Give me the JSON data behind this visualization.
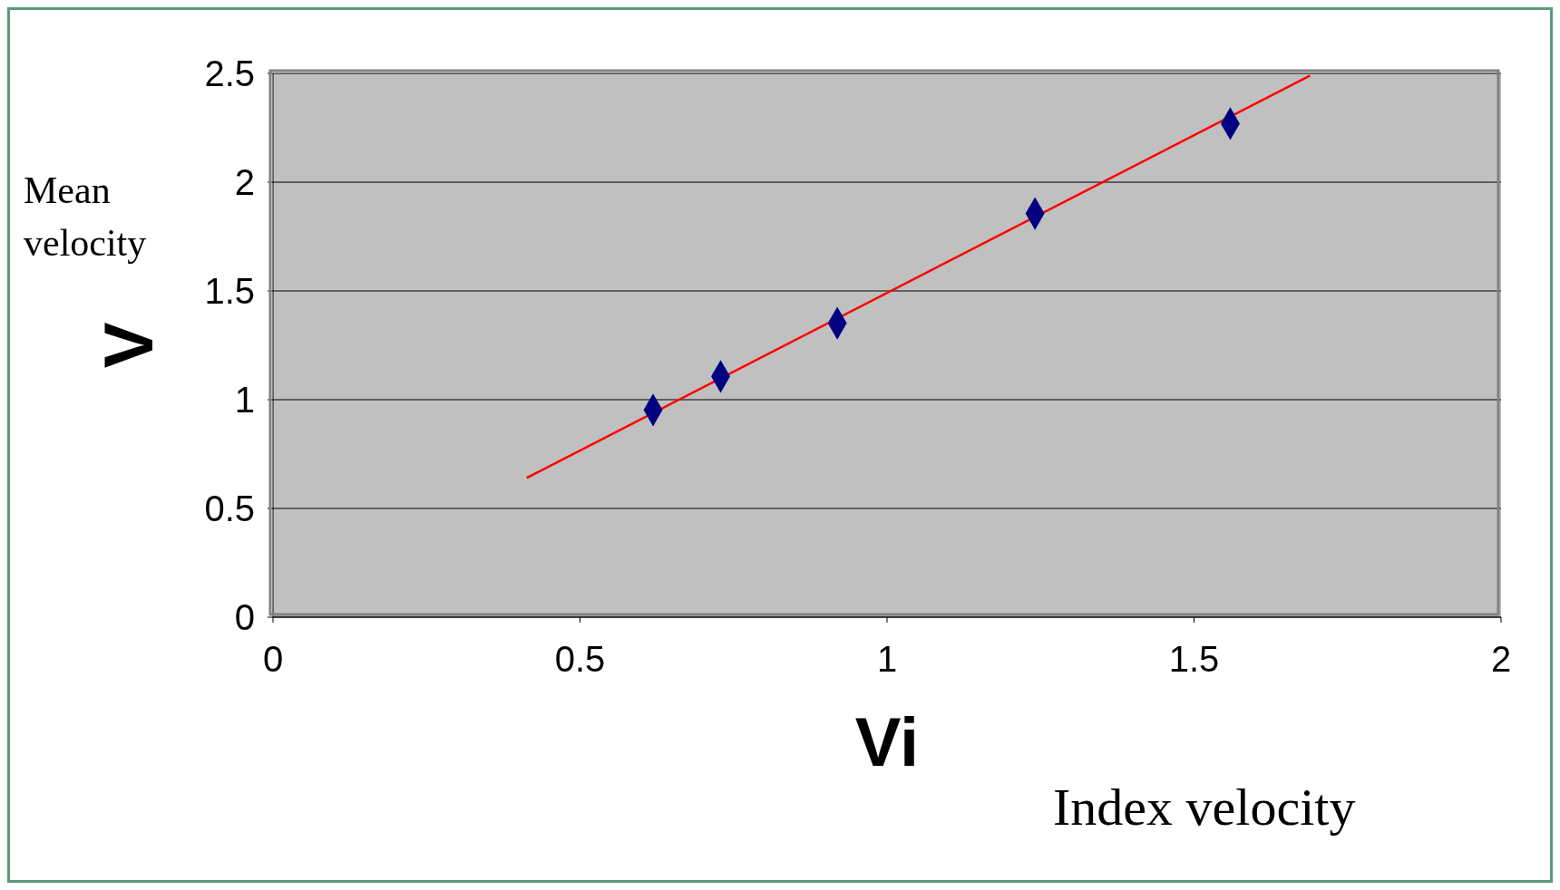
{
  "chart_data": {
    "type": "scatter",
    "xlabel": "Vi",
    "ylabel": "V",
    "annotations": [
      "Mean velocity",
      "Index velocity"
    ],
    "xlim": [
      0,
      2
    ],
    "xticks": [
      0,
      0.5,
      1,
      1.5,
      2
    ],
    "ylim": [
      0,
      2.5
    ],
    "yticks": [
      0,
      0.5,
      1,
      1.5,
      2,
      2.5
    ],
    "grid": "y",
    "series": [
      {
        "marker": "diamond",
        "color": "#000080",
        "x": [
          0.619,
          0.729,
          0.919,
          1.241,
          1.559
        ],
        "values": [
          0.953,
          1.107,
          1.352,
          1.856,
          2.269
        ]
      },
      {
        "type": "line",
        "color": "#ff0000",
        "x": [
          0.413,
          1.689
        ],
        "values": [
          0.64,
          2.49
        ]
      }
    ]
  }
}
